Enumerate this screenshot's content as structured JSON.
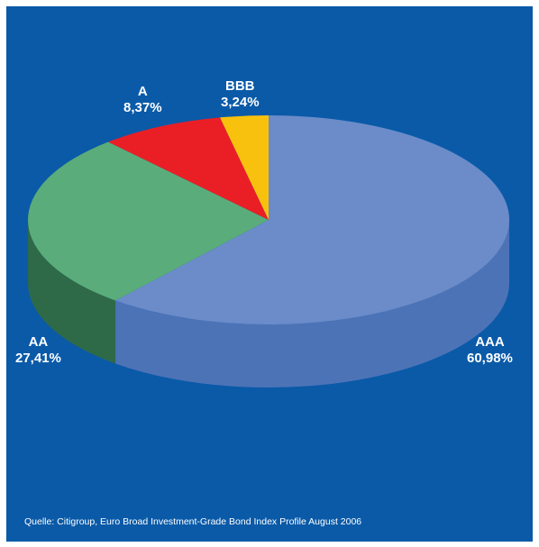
{
  "chart_data": {
    "type": "pie",
    "three_d": true,
    "slices": [
      {
        "name": "AAA",
        "value_label": "60,98%",
        "value": 60.98,
        "top_color": "#6b8cc9",
        "side_color": "#4d73b7"
      },
      {
        "name": "AA",
        "value_label": "27,41%",
        "value": 27.41,
        "top_color": "#5aad7a",
        "side_color": "#2f6a48"
      },
      {
        "name": "A",
        "value_label": "8,37%",
        "value": 8.37,
        "top_color": "#ea1f26",
        "side_color": "#b0161b"
      },
      {
        "name": "BBB",
        "value_label": "3,24%",
        "value": 3.24,
        "top_color": "#f8c10e",
        "side_color": "#c99a08"
      }
    ],
    "legend": "none"
  },
  "source": "Quelle: Citigroup, Euro Broad Investment-Grade Bond Index Profile August 2006",
  "colors": {
    "background": "#0a5aa8",
    "label_text": "#ffffff"
  }
}
